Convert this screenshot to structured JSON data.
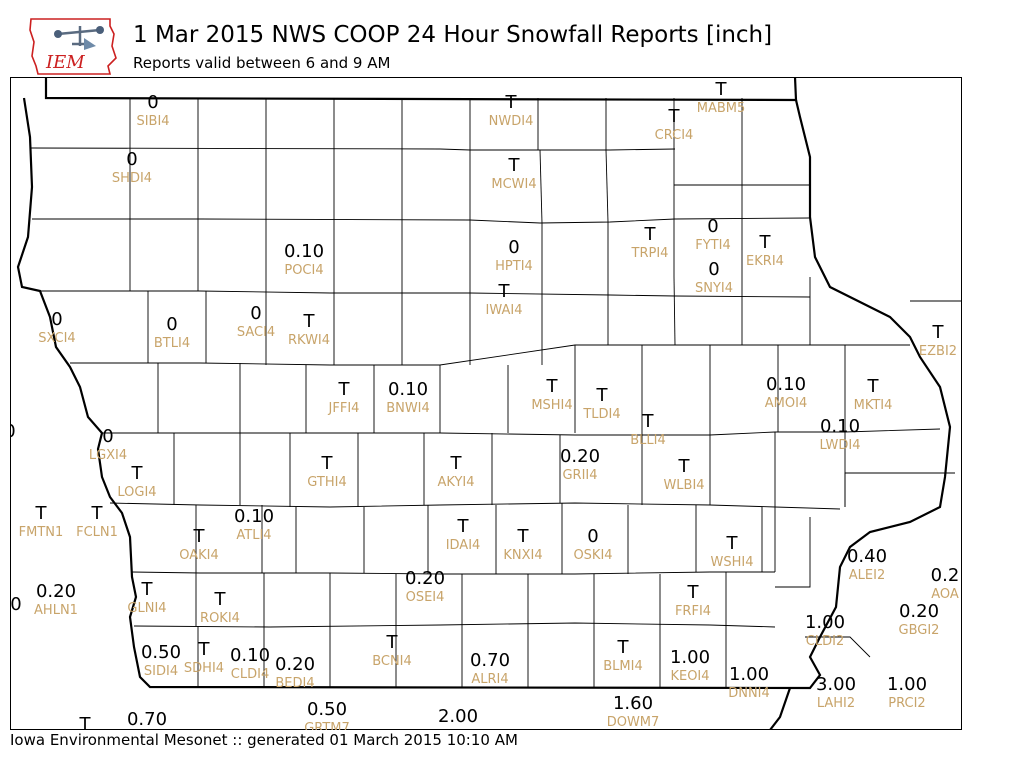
{
  "header": {
    "title": "1 Mar 2015 NWS COOP 24 Hour Snowfall Reports [inch]",
    "subtitle": "Reports valid between 6 and 9 AM",
    "logo_text": "IEM"
  },
  "footer": {
    "text": "Iowa Environmental Mesonet :: generated 01 March 2015 10:10 AM"
  },
  "colors": {
    "value_text": "#000000",
    "station_text": "#c8a46a",
    "border": "#000000",
    "logo_red": "#cc2020"
  },
  "reports": [
    {
      "id": "SIBI4",
      "value": "0"
    },
    {
      "id": "NWDI4",
      "value": "T"
    },
    {
      "id": "MABM5",
      "value": "T"
    },
    {
      "id": "CRCI4",
      "value": "T"
    },
    {
      "id": "SHDI4",
      "value": "0"
    },
    {
      "id": "MCWI4",
      "value": "T"
    },
    {
      "id": "FYTI4",
      "value": "0"
    },
    {
      "id": "TRPI4",
      "value": "T"
    },
    {
      "id": "EKRI4",
      "value": "T"
    },
    {
      "id": "POCI4",
      "value": "0.10"
    },
    {
      "id": "HPTI4",
      "value": "0"
    },
    {
      "id": "SNYI4",
      "value": "0"
    },
    {
      "id": "IWAI4",
      "value": "T"
    },
    {
      "id": "SXCI4",
      "value": "0"
    },
    {
      "id": "BTLI4",
      "value": "0"
    },
    {
      "id": "SACI4",
      "value": "0"
    },
    {
      "id": "RKWI4",
      "value": "T"
    },
    {
      "id": "EZBI2",
      "value": "T"
    },
    {
      "id": "JFFI4",
      "value": "T"
    },
    {
      "id": "BNWI4",
      "value": "0.10"
    },
    {
      "id": "MSHI4",
      "value": "T"
    },
    {
      "id": "AMOI4",
      "value": "0.10"
    },
    {
      "id": "MKTI4",
      "value": "T"
    },
    {
      "id": "TLDI4",
      "value": "T"
    },
    {
      "id": "BLLI4",
      "value": "T"
    },
    {
      "id": "LWDI4",
      "value": "0.10"
    },
    {
      "id": "LGXI4",
      "value": "0"
    },
    {
      "id": "LOGI4",
      "value": "T"
    },
    {
      "id": "GTHI4",
      "value": "T"
    },
    {
      "id": "AKYI4",
      "value": "T"
    },
    {
      "id": "GRII4",
      "value": "0.20"
    },
    {
      "id": "WLBI4",
      "value": "T"
    },
    {
      "id": "FMTN1",
      "value": "T"
    },
    {
      "id": "FCLN1",
      "value": "T"
    },
    {
      "id": "OAKI4",
      "value": "T"
    },
    {
      "id": "ATLI4",
      "value": "0.10"
    },
    {
      "id": "IDAI4",
      "value": "T"
    },
    {
      "id": "KNXI4",
      "value": "T"
    },
    {
      "id": "OSKI4",
      "value": "0"
    },
    {
      "id": "WSHI4",
      "value": "T"
    },
    {
      "id": "ALEI2",
      "value": "0.40"
    },
    {
      "id": "AOA",
      "value": "0.2"
    },
    {
      "id": "AHLN1",
      "value": "0.20"
    },
    {
      "id": "GLNI4",
      "value": "T"
    },
    {
      "id": "ROKI4",
      "value": "T"
    },
    {
      "id": "OSEI4",
      "value": "0.20"
    },
    {
      "id": "FRFI4",
      "value": "T"
    },
    {
      "id": "GBGI2",
      "value": "0.20"
    },
    {
      "id": "CLDI2",
      "value": "1.00"
    },
    {
      "id": "SIDI4",
      "value": "0.50"
    },
    {
      "id": "SDHI4",
      "value": "T"
    },
    {
      "id": "CLDI4",
      "value": "0.10"
    },
    {
      "id": "BEDI4",
      "value": "0.20"
    },
    {
      "id": "BCNI4",
      "value": "T"
    },
    {
      "id": "ALRI4",
      "value": "0.70"
    },
    {
      "id": "BLMI4",
      "value": "T"
    },
    {
      "id": "KEOI4",
      "value": "1.00"
    },
    {
      "id": "DNNI4",
      "value": "1.00"
    },
    {
      "id": "LAHI2",
      "value": "3.00"
    },
    {
      "id": "PRCI2",
      "value": "1.00"
    },
    {
      "id": "GRTM7",
      "value": "0.50"
    },
    {
      "id": "DOWM7",
      "value": "1.60"
    }
  ],
  "extra_values": [
    "0",
    "0",
    "T",
    "0.70",
    "2.00"
  ]
}
